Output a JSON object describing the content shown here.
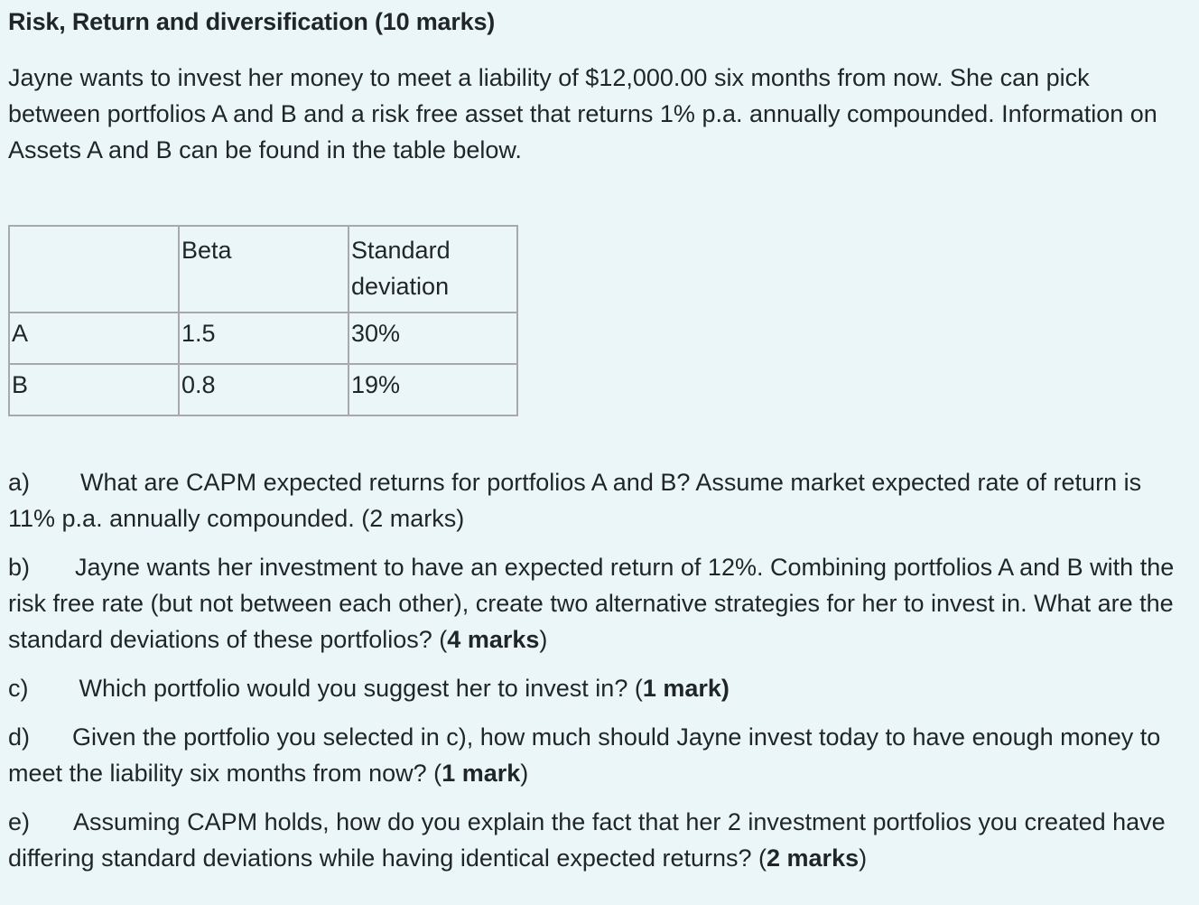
{
  "title": "Risk, Return and diversification (10 marks)",
  "intro": "Jayne wants to invest her money to meet a liability of $12,000.00 six months from now. She can pick between portfolios A and B and a risk free asset that returns 1% p.a. annually compounded. Information on Assets A and B can be found in the table below.",
  "table": {
    "headers": [
      "",
      "Beta",
      "Standard deviation"
    ],
    "rows": [
      {
        "asset": "A",
        "beta": "1.5",
        "sd": "30%"
      },
      {
        "asset": "B",
        "beta": "0.8",
        "sd": "19%"
      }
    ]
  },
  "questions": {
    "a": {
      "label": "a)",
      "text": "What are CAPM expected returns for portfolios A and B? Assume market expected rate of return is 11% p.a. annually compounded. (2 marks)"
    },
    "b": {
      "label": "b)",
      "text": "Jayne wants her investment to have an expected return of 12%. Combining portfolios A and B with the risk free rate (but not between each other), create two alternative strategies for her to invest in. What are the standard deviations of these portfolios? (",
      "marks": "4 marks",
      "close": ")"
    },
    "c": {
      "label": "c)",
      "text": "Which portfolio would you suggest her to invest in? (",
      "marks": "1 mark)",
      "close": ""
    },
    "d": {
      "label": "d)",
      "text": "Given the portfolio you selected in c), how much should Jayne invest today to have enough money to meet the liability six months from now? (",
      "marks": "1 mark",
      "close": ")"
    },
    "e": {
      "label": "e)",
      "text": "Assuming CAPM holds, how do you explain the fact that her 2 investment portfolios you created have differing standard deviations while having identical expected returns? (",
      "marks": "2 marks",
      "close": ")"
    }
  }
}
